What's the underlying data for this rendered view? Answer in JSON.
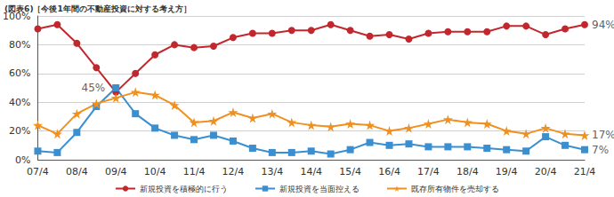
{
  "chart_data": {
    "type": "line",
    "title": "(図表6)［今後1年間の不動産投資に対する考え方］",
    "categories": [
      "07/4",
      null,
      "08/4",
      null,
      "09/4",
      null,
      "10/4",
      null,
      "11/4",
      null,
      "12/4",
      null,
      "13/4",
      null,
      "14/4",
      null,
      "15/4",
      null,
      "16/4",
      null,
      "17/4",
      null,
      "18/4",
      null,
      "19/4",
      null,
      "20/4",
      null,
      "21/4"
    ],
    "series": [
      {
        "name": "新規投資を積極的に行う",
        "color": "#c1272d",
        "marker": "circle",
        "values": [
          91,
          94,
          81,
          64,
          47,
          60,
          73,
          80,
          78,
          79,
          85,
          88,
          88,
          90,
          90,
          94,
          90,
          86,
          87,
          84,
          88,
          89,
          89,
          89,
          93,
          93,
          87,
          91,
          94
        ]
      },
      {
        "name": "新規投資を当面控える",
        "color": "#3a8fd0",
        "marker": "square",
        "values": [
          6,
          5,
          19,
          37,
          50,
          32,
          22,
          17,
          14,
          17,
          13,
          8,
          5,
          5,
          6,
          4,
          7,
          12,
          10,
          11,
          9,
          9,
          9,
          8,
          7,
          6,
          16,
          10,
          7
        ]
      },
      {
        "name": "既存所有物件を売却する",
        "color": "#f0901e",
        "marker": "star",
        "values": [
          24,
          18,
          32,
          39,
          43,
          47,
          45,
          38,
          26,
          27,
          33,
          29,
          32,
          26,
          24,
          23,
          25,
          24,
          20,
          22,
          25,
          28,
          26,
          25,
          20,
          18,
          22,
          18,
          17
        ]
      }
    ],
    "ylim": [
      0,
      100
    ],
    "yticks": [
      {
        "value": 0,
        "label": "0%"
      },
      {
        "value": 20,
        "label": "20%"
      },
      {
        "value": 40,
        "label": "40%"
      },
      {
        "value": 60,
        "label": "60%"
      },
      {
        "value": 80,
        "label": "80%"
      },
      {
        "value": 100,
        "label": "100%"
      }
    ],
    "grid": true,
    "legend": "bottom",
    "annotations": [
      {
        "text": "45%",
        "x": "09/4",
        "y": 45,
        "side": "left"
      },
      {
        "text": "94%",
        "x": "21/4",
        "y": 94,
        "side": "right"
      },
      {
        "text": "17%",
        "x": "21/4",
        "y": 17,
        "side": "right"
      },
      {
        "text": "7%",
        "x": "21/4",
        "y": 7,
        "side": "right"
      }
    ]
  }
}
